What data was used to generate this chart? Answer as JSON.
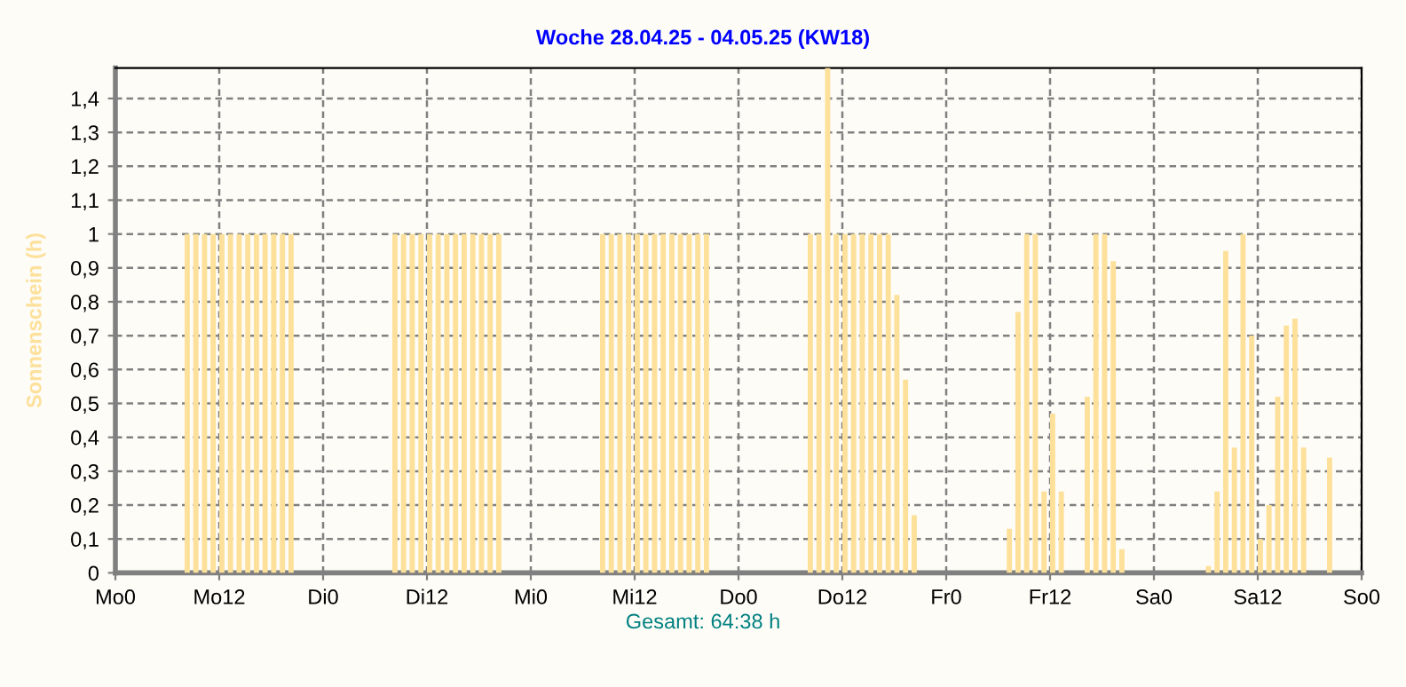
{
  "chart_data": {
    "type": "bar",
    "title": "Woche 28.04.25 - 04.05.25 (KW18)",
    "ylabel": "Sonnenschein (h)",
    "annotations": [
      "Gesamt: 64:38 h"
    ],
    "categories": [
      "Mo0",
      null,
      null,
      null,
      null,
      null,
      null,
      null,
      null,
      null,
      null,
      null,
      "Mo12",
      null,
      null,
      null,
      null,
      null,
      null,
      null,
      null,
      null,
      null,
      null,
      "Di0",
      null,
      null,
      null,
      null,
      null,
      null,
      null,
      null,
      null,
      null,
      null,
      "Di12",
      null,
      null,
      null,
      null,
      null,
      null,
      null,
      null,
      null,
      null,
      null,
      "Mi0",
      null,
      null,
      null,
      null,
      null,
      null,
      null,
      null,
      null,
      null,
      null,
      "Mi12",
      null,
      null,
      null,
      null,
      null,
      null,
      null,
      null,
      null,
      null,
      null,
      "Do0",
      null,
      null,
      null,
      null,
      null,
      null,
      null,
      null,
      null,
      null,
      null,
      "Do12",
      null,
      null,
      null,
      null,
      null,
      null,
      null,
      null,
      null,
      null,
      null,
      "Fr0",
      null,
      null,
      null,
      null,
      null,
      null,
      null,
      null,
      null,
      null,
      null,
      "Fr12",
      null,
      null,
      null,
      null,
      null,
      null,
      null,
      null,
      null,
      null,
      null,
      "Sa0",
      null,
      null,
      null,
      null,
      null,
      null,
      null,
      null,
      null,
      null,
      null,
      "Sa12",
      null,
      null,
      null,
      null,
      null,
      null,
      null,
      null,
      null,
      null,
      null,
      "So0"
    ],
    "values": [
      0,
      0,
      0,
      0,
      0,
      0,
      0,
      0,
      1,
      1,
      1,
      1,
      1,
      1,
      1,
      1,
      1,
      1,
      1,
      1,
      1,
      0,
      0,
      0,
      0,
      0,
      0,
      0,
      0,
      0,
      0,
      0,
      1,
      1,
      1,
      1,
      1,
      1,
      1,
      1,
      1,
      1,
      1,
      1,
      1,
      0,
      0,
      0,
      0,
      0,
      0,
      0,
      0,
      0,
      0,
      0,
      1,
      1,
      1,
      1,
      1,
      1,
      1,
      1,
      1,
      1,
      1,
      1,
      1,
      0,
      0,
      0,
      0,
      0,
      0,
      0,
      0,
      0,
      0,
      0,
      1,
      1,
      1.49,
      1,
      1,
      1,
      1,
      1,
      1,
      1,
      0.82,
      0.57,
      0.17,
      0,
      0,
      0,
      0,
      0,
      0,
      0,
      0,
      0,
      0,
      0.13,
      0.77,
      1,
      1,
      0.24,
      0.47,
      0.24,
      0,
      0,
      0.52,
      1,
      1,
      0.92,
      0.07,
      0,
      0,
      0,
      0,
      0,
      0,
      0,
      0,
      0,
      0.02,
      0.24,
      0.95,
      0.37,
      1,
      0.7,
      0.1,
      0.2,
      0.52,
      0.73,
      0.75,
      0.37,
      0,
      0,
      0.34,
      0,
      0,
      0,
      0
    ],
    "color": "#fde09a",
    "ylim": [
      0,
      1.49
    ],
    "yticks": [
      0,
      {
        "value": 0.1,
        "label": "0,1"
      },
      {
        "value": 0.2,
        "label": "0,2"
      },
      {
        "value": 0.3,
        "label": "0,3"
      },
      {
        "value": 0.4,
        "label": "0,4"
      },
      {
        "value": 0.5,
        "label": "0,5"
      },
      {
        "value": 0.6,
        "label": "0,6"
      },
      {
        "value": 0.7,
        "label": "0,7"
      },
      {
        "value": 0.8,
        "label": "0,8"
      },
      {
        "value": 0.9,
        "label": "0,9"
      },
      1,
      {
        "value": 1.1,
        "label": "1,1"
      },
      {
        "value": 1.2,
        "label": "1,2"
      },
      {
        "value": 1.3,
        "label": "1,3"
      },
      {
        "value": 1.4,
        "label": "1,4"
      }
    ],
    "grid": true
  }
}
